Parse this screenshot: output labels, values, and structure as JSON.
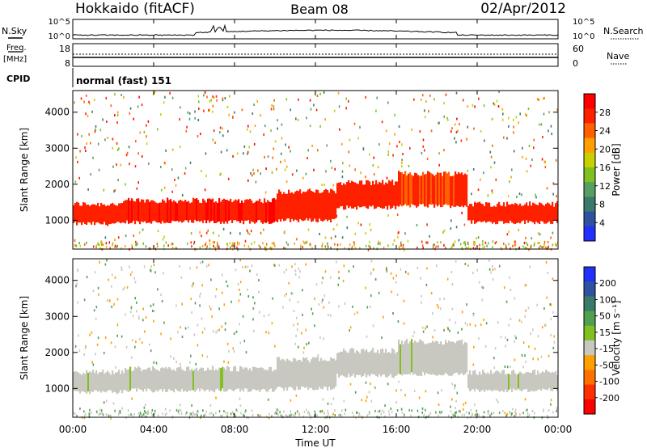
{
  "header": {
    "station": "Hokkaido (fitACF)",
    "beam": "Beam 08",
    "date": "02/Apr/2012"
  },
  "side_labels": {
    "nsky": "N.Sky",
    "freq_top": "Freq.",
    "freq_unit": "[MHz]",
    "cpid": "CPID",
    "nsearch": "N.Search",
    "nave": "Nave"
  },
  "cpid_text": "normal (fast) 151",
  "colors": {
    "power_scale": [
      "#2030ff",
      "#3050a0",
      "#3a7a6a",
      "#55a060",
      "#80c020",
      "#c8d000",
      "#ffa000",
      "#ff6000",
      "#ff2000",
      "#ff0000"
    ],
    "velocity_scale": [
      "#2030ff",
      "#3050a0",
      "#3a7a6a",
      "#50a050",
      "#80c020",
      "#c8c8c0",
      "#ffa000",
      "#ff7000",
      "#ff3000",
      "#ff0000"
    ]
  },
  "chart_data": [
    {
      "type": "line",
      "name": "noise",
      "left_axis": {
        "label": "N.Sky",
        "ticks": [
          "10^5",
          "10^0"
        ]
      },
      "right_axis": {
        "label": "N.Search",
        "ticks": [
          "10^5",
          "10^0"
        ]
      },
      "xlim": [
        0,
        24
      ]
    },
    {
      "type": "line",
      "name": "frequency-nave",
      "left_axis": {
        "label": "Freq. [MHz]",
        "ticks": [
          "18",
          "8"
        ]
      },
      "right_axis": {
        "label": "Nave",
        "ticks": [
          "60",
          "0"
        ]
      },
      "xlim": [
        0,
        24
      ]
    },
    {
      "type": "heatmap",
      "name": "power",
      "ylabel": "Slant Range [km]",
      "yticks": [
        "1000",
        "2000",
        "3000",
        "4000"
      ],
      "ylim": [
        200,
        4600
      ],
      "xlim": [
        0,
        24
      ],
      "colorbar": {
        "label": "Power [dB]",
        "ticks": [
          "4",
          "8",
          "12",
          "16",
          "20",
          "24",
          "28"
        ],
        "range": [
          0,
          30
        ]
      },
      "bands": [
        {
          "start": 0,
          "end": 2.5,
          "lower": 900,
          "upper": 1450,
          "value": 27
        },
        {
          "start": 2.5,
          "end": 10,
          "lower": 950,
          "upper": 1550,
          "value": 28
        },
        {
          "start": 10,
          "end": 13,
          "lower": 1000,
          "upper": 1800,
          "value": 27
        },
        {
          "start": 13,
          "end": 16,
          "lower": 1350,
          "upper": 2050,
          "value": 27
        },
        {
          "start": 16,
          "end": 19.5,
          "lower": 1400,
          "upper": 2300,
          "value": 26
        },
        {
          "start": 19.5,
          "end": 24,
          "lower": 950,
          "upper": 1450,
          "value": 27
        }
      ]
    },
    {
      "type": "heatmap",
      "name": "velocity",
      "ylabel": "Slant Range [km]",
      "yticks": [
        "1000",
        "2000",
        "3000",
        "4000"
      ],
      "ylim": [
        200,
        4600
      ],
      "xlim": [
        0,
        24
      ],
      "xlabel": "Time UT",
      "xticks": [
        "00:00",
        "04:00",
        "08:00",
        "12:00",
        "16:00",
        "20:00",
        "00:00"
      ],
      "colorbar": {
        "label": "Velocity [m s⁻¹]",
        "ticks": [
          "200",
          "100",
          "50",
          "15",
          "-15",
          "-50",
          "-100",
          "-200"
        ],
        "range": [
          -250,
          250
        ]
      },
      "bands": [
        {
          "start": 0,
          "end": 2.5,
          "lower": 900,
          "upper": 1450,
          "value": 0
        },
        {
          "start": 2.5,
          "end": 10,
          "lower": 950,
          "upper": 1550,
          "value": 0
        },
        {
          "start": 10,
          "end": 13,
          "lower": 1000,
          "upper": 1800,
          "value": 0
        },
        {
          "start": 13,
          "end": 16,
          "lower": 1350,
          "upper": 2050,
          "value": 0
        },
        {
          "start": 16,
          "end": 19.5,
          "lower": 1400,
          "upper": 2300,
          "value": 0
        },
        {
          "start": 19.5,
          "end": 24,
          "lower": 950,
          "upper": 1450,
          "value": 0
        }
      ]
    }
  ]
}
